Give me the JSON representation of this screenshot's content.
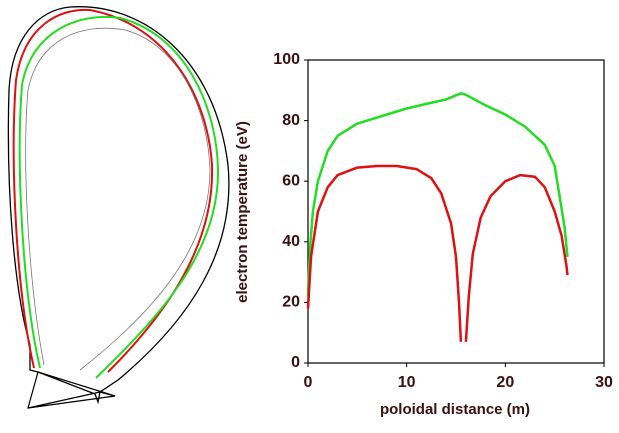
{
  "chart_data": {
    "type": "line",
    "xlabel": "poloidal distance (m)",
    "ylabel": "electron temperature (eV)",
    "xlim": [
      0,
      30
    ],
    "xticks": [
      0,
      10,
      20,
      30
    ],
    "ylim": [
      0,
      100
    ],
    "yticks": [
      0,
      20,
      40,
      60,
      80,
      100
    ],
    "series": [
      {
        "color": "#22dd22",
        "x": [
          0,
          0.2,
          0.5,
          1,
          2,
          3,
          5,
          8,
          10,
          12,
          14,
          15.5,
          16,
          18,
          20,
          22,
          24,
          25,
          25.5,
          26,
          26.3
        ],
        "values": [
          22,
          38,
          50,
          60,
          70,
          75,
          79,
          82,
          84,
          85.5,
          87,
          89,
          88.5,
          85,
          82,
          78,
          72,
          65,
          55,
          45,
          35
        ]
      },
      {
        "color": "#dd1111",
        "x": [
          0,
          0.3,
          1,
          2,
          3,
          5,
          7,
          9,
          11,
          12.5,
          13.5,
          14.5,
          15,
          15.3,
          15.5,
          15.7,
          16,
          16.3,
          16.7,
          17.5,
          18.5,
          20,
          21.5,
          23,
          24,
          25,
          25.7,
          26.2,
          26.3
        ],
        "values": [
          18,
          35,
          50,
          58,
          62,
          64.5,
          65,
          65,
          64,
          61,
          56,
          46,
          35,
          20,
          7,
          null,
          7,
          22,
          36,
          48,
          55,
          60,
          62,
          61.5,
          58,
          50,
          42,
          32,
          29
        ]
      }
    ]
  }
}
